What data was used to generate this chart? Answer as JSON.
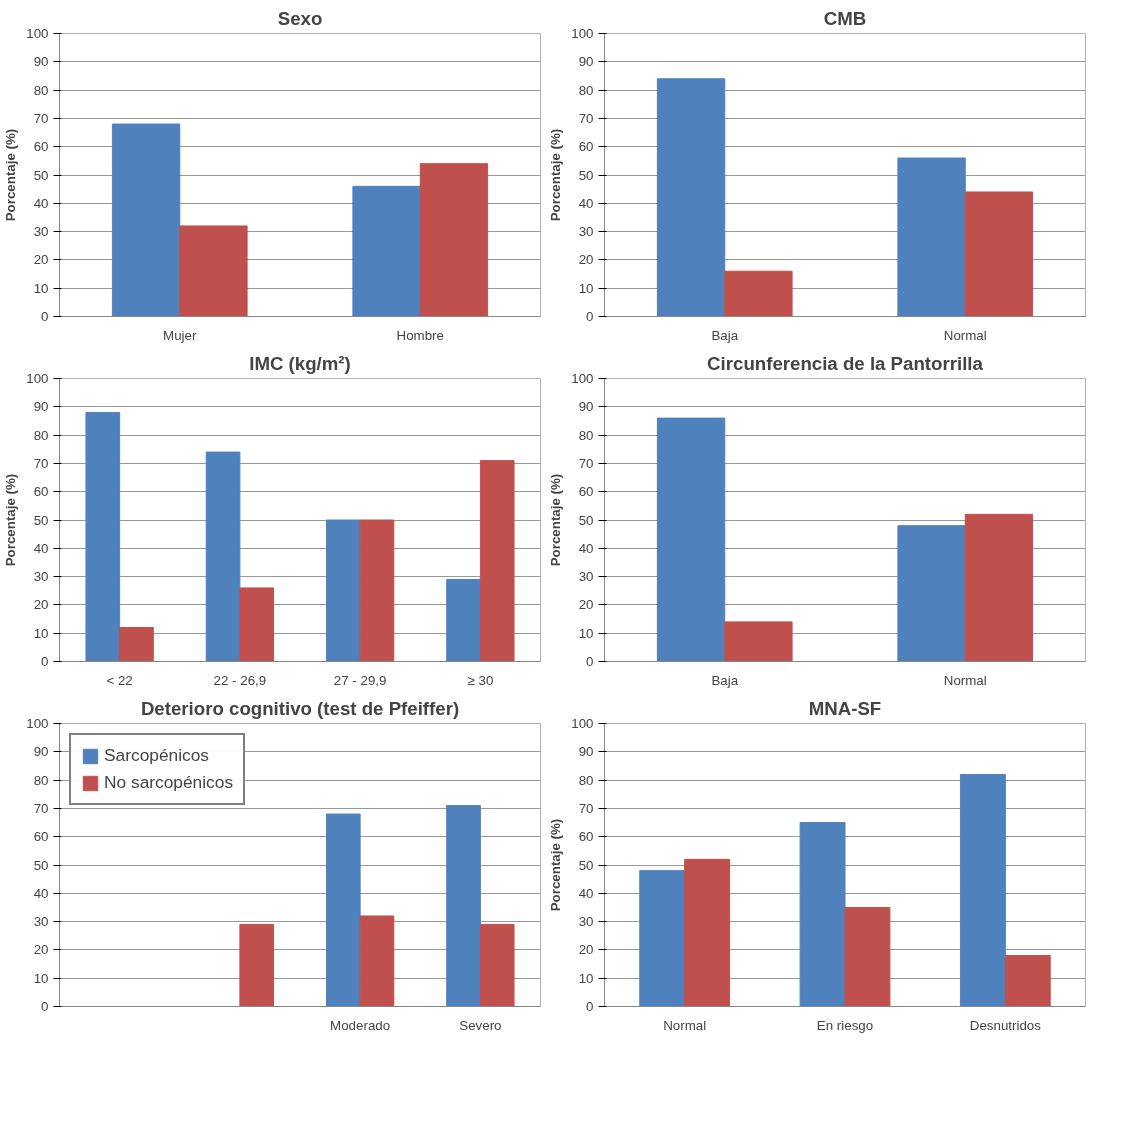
{
  "chart_data": [
    {
      "type": "bar",
      "title": "Sexo",
      "ylabel": "Porcentaje (%)",
      "categories": [
        "Mujer",
        "Hombre"
      ],
      "series": [
        {
          "color": "#4f81bd",
          "values": [
            68,
            46
          ]
        },
        {
          "color": "#c0504d",
          "values": [
            32,
            54
          ]
        }
      ],
      "ylim": [
        0,
        100
      ],
      "yticks": [
        0,
        10,
        20,
        30,
        40,
        50,
        60,
        70,
        80,
        90,
        100
      ],
      "grid": "y"
    },
    {
      "type": "bar",
      "title": "CMB",
      "ylabel": "Porcentaje (%)",
      "categories": [
        "Baja",
        "Normal"
      ],
      "series": [
        {
          "color": "#4f81bd",
          "values": [
            84,
            56
          ]
        },
        {
          "color": "#c0504d",
          "values": [
            16,
            44
          ]
        }
      ],
      "ylim": [
        0,
        100
      ],
      "yticks": [
        0,
        10,
        20,
        30,
        40,
        50,
        60,
        70,
        80,
        90,
        100
      ],
      "grid": "y"
    },
    {
      "type": "bar",
      "title": "IMC (kg/m²)",
      "ylabel": "Porcentaje (%)",
      "categories": [
        "< 22",
        "22 - 26,9",
        "27 - 29,9",
        "≥ 30"
      ],
      "series": [
        {
          "color": "#4f81bd",
          "values": [
            88,
            74,
            50,
            29
          ]
        },
        {
          "color": "#c0504d",
          "values": [
            12,
            26,
            50,
            71
          ]
        }
      ],
      "ylim": [
        0,
        100
      ],
      "yticks": [
        0,
        10,
        20,
        30,
        40,
        50,
        60,
        70,
        80,
        90,
        100
      ],
      "grid": "y"
    },
    {
      "type": "bar",
      "title": "Circunferencia de la Pantorrilla",
      "ylabel": "Porcentaje (%)",
      "categories": [
        "Baja",
        "Normal"
      ],
      "series": [
        {
          "color": "#4f81bd",
          "values": [
            86,
            48
          ]
        },
        {
          "color": "#c0504d",
          "values": [
            14,
            52
          ]
        }
      ],
      "ylim": [
        0,
        100
      ],
      "yticks": [
        0,
        10,
        20,
        30,
        40,
        50,
        60,
        70,
        80,
        90,
        100
      ],
      "grid": "y"
    },
    {
      "type": "bar",
      "title": "Deterioro cognitivo (test de Pfeiffer)",
      "categories": [
        null,
        null,
        "Moderado",
        "Severo"
      ],
      "series": [
        {
          "name": "Sarcopénicos",
          "color": "#4f81bd",
          "values": [
            null,
            null,
            68,
            71
          ]
        },
        {
          "name": "No sarcopénicos",
          "color": "#c0504d",
          "values": [
            null,
            29,
            32,
            29
          ]
        }
      ],
      "ylim": [
        0,
        100
      ],
      "yticks": [
        0,
        10,
        20,
        30,
        40,
        50,
        60,
        70,
        80,
        90,
        100
      ],
      "grid": "y",
      "legend": "top left"
    },
    {
      "type": "bar",
      "title": "MNA-SF",
      "ylabel": "Porcentaje (%)",
      "categories": [
        "Normal",
        "En riesgo",
        "Desnutridos"
      ],
      "series": [
        {
          "color": "#4f81bd",
          "values": [
            48,
            65,
            82
          ]
        },
        {
          "color": "#c0504d",
          "values": [
            52,
            35,
            18
          ]
        }
      ],
      "ylim": [
        0,
        100
      ],
      "yticks": [
        0,
        10,
        20,
        30,
        40,
        50,
        60,
        70,
        80,
        90,
        100
      ],
      "grid": "y"
    }
  ]
}
